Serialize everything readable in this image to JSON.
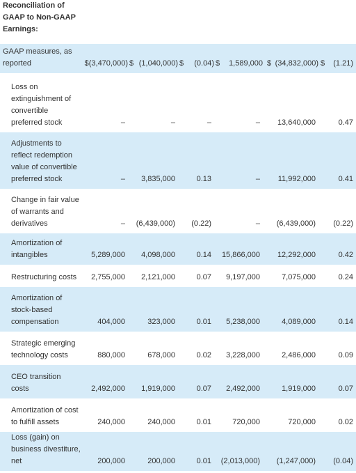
{
  "title": "Reconciliation of GAAP to Non-GAAP Earnings:",
  "rows": [
    {
      "label": "GAAP measures, as reported",
      "c1": "$(3,470,000)",
      "c2": "$",
      "c3": "(1,040,000)",
      "c4": "$",
      "c5": "(0.04)",
      "c6": "$",
      "c7": "1,589,000",
      "c8": "$",
      "c9": "(34,832,000)",
      "c10": "$",
      "c11": "(1.21)"
    },
    {
      "label": "Loss on extinguishment of convertible preferred stock",
      "c1": "–",
      "c3": "–",
      "c5": "–",
      "c7": "–",
      "c9": "13,640,000",
      "c11": "0.47"
    },
    {
      "label": "Adjustments to reflect redemption value of convertible preferred stock",
      "c1": "–",
      "c3": "3,835,000",
      "c5": "0.13",
      "c7": "–",
      "c9": "11,992,000",
      "c11": "0.41"
    },
    {
      "label": "Change in fair value of warrants and derivatives",
      "c1": "–",
      "c3": "(6,439,000)",
      "c5": "(0.22)",
      "c7": "–",
      "c9": "(6,439,000)",
      "c11": "(0.22)"
    },
    {
      "label": "Amortization of intangibles",
      "c1": "5,289,000",
      "c3": "4,098,000",
      "c5": "0.14",
      "c7": "15,866,000",
      "c9": "12,292,000",
      "c11": "0.42"
    },
    {
      "label": "Restructuring costs",
      "c1": "2,755,000",
      "c3": "2,121,000",
      "c5": "0.07",
      "c7": "9,197,000",
      "c9": "7,075,000",
      "c11": "0.24"
    },
    {
      "label": "Amortization of stock-based compensation",
      "c1": "404,000",
      "c3": "323,000",
      "c5": "0.01",
      "c7": "5,238,000",
      "c9": "4,089,000",
      "c11": "0.14"
    },
    {
      "label": "Strategic emerging technology costs",
      "c1": "880,000",
      "c3": "678,000",
      "c5": "0.02",
      "c7": "3,228,000",
      "c9": "2,486,000",
      "c11": "0.09"
    },
    {
      "label": "CEO transition costs",
      "c1": "2,492,000",
      "c3": "1,919,000",
      "c5": "0.07",
      "c7": "2,492,000",
      "c9": "1,919,000",
      "c11": "0.07"
    },
    {
      "label": "Amortization of cost to fulfill assets",
      "c1": "240,000",
      "c3": "240,000",
      "c5": "0.01",
      "c7": "720,000",
      "c9": "720,000",
      "c11": "0.02"
    },
    {
      "label": "Loss (gain) on business divestiture, net",
      "c1": "200,000",
      "c3": "200,000",
      "c5": "0.01",
      "c7": "(2,013,000)",
      "c9": "(1,247,000)",
      "c11": "(0.04)"
    }
  ]
}
